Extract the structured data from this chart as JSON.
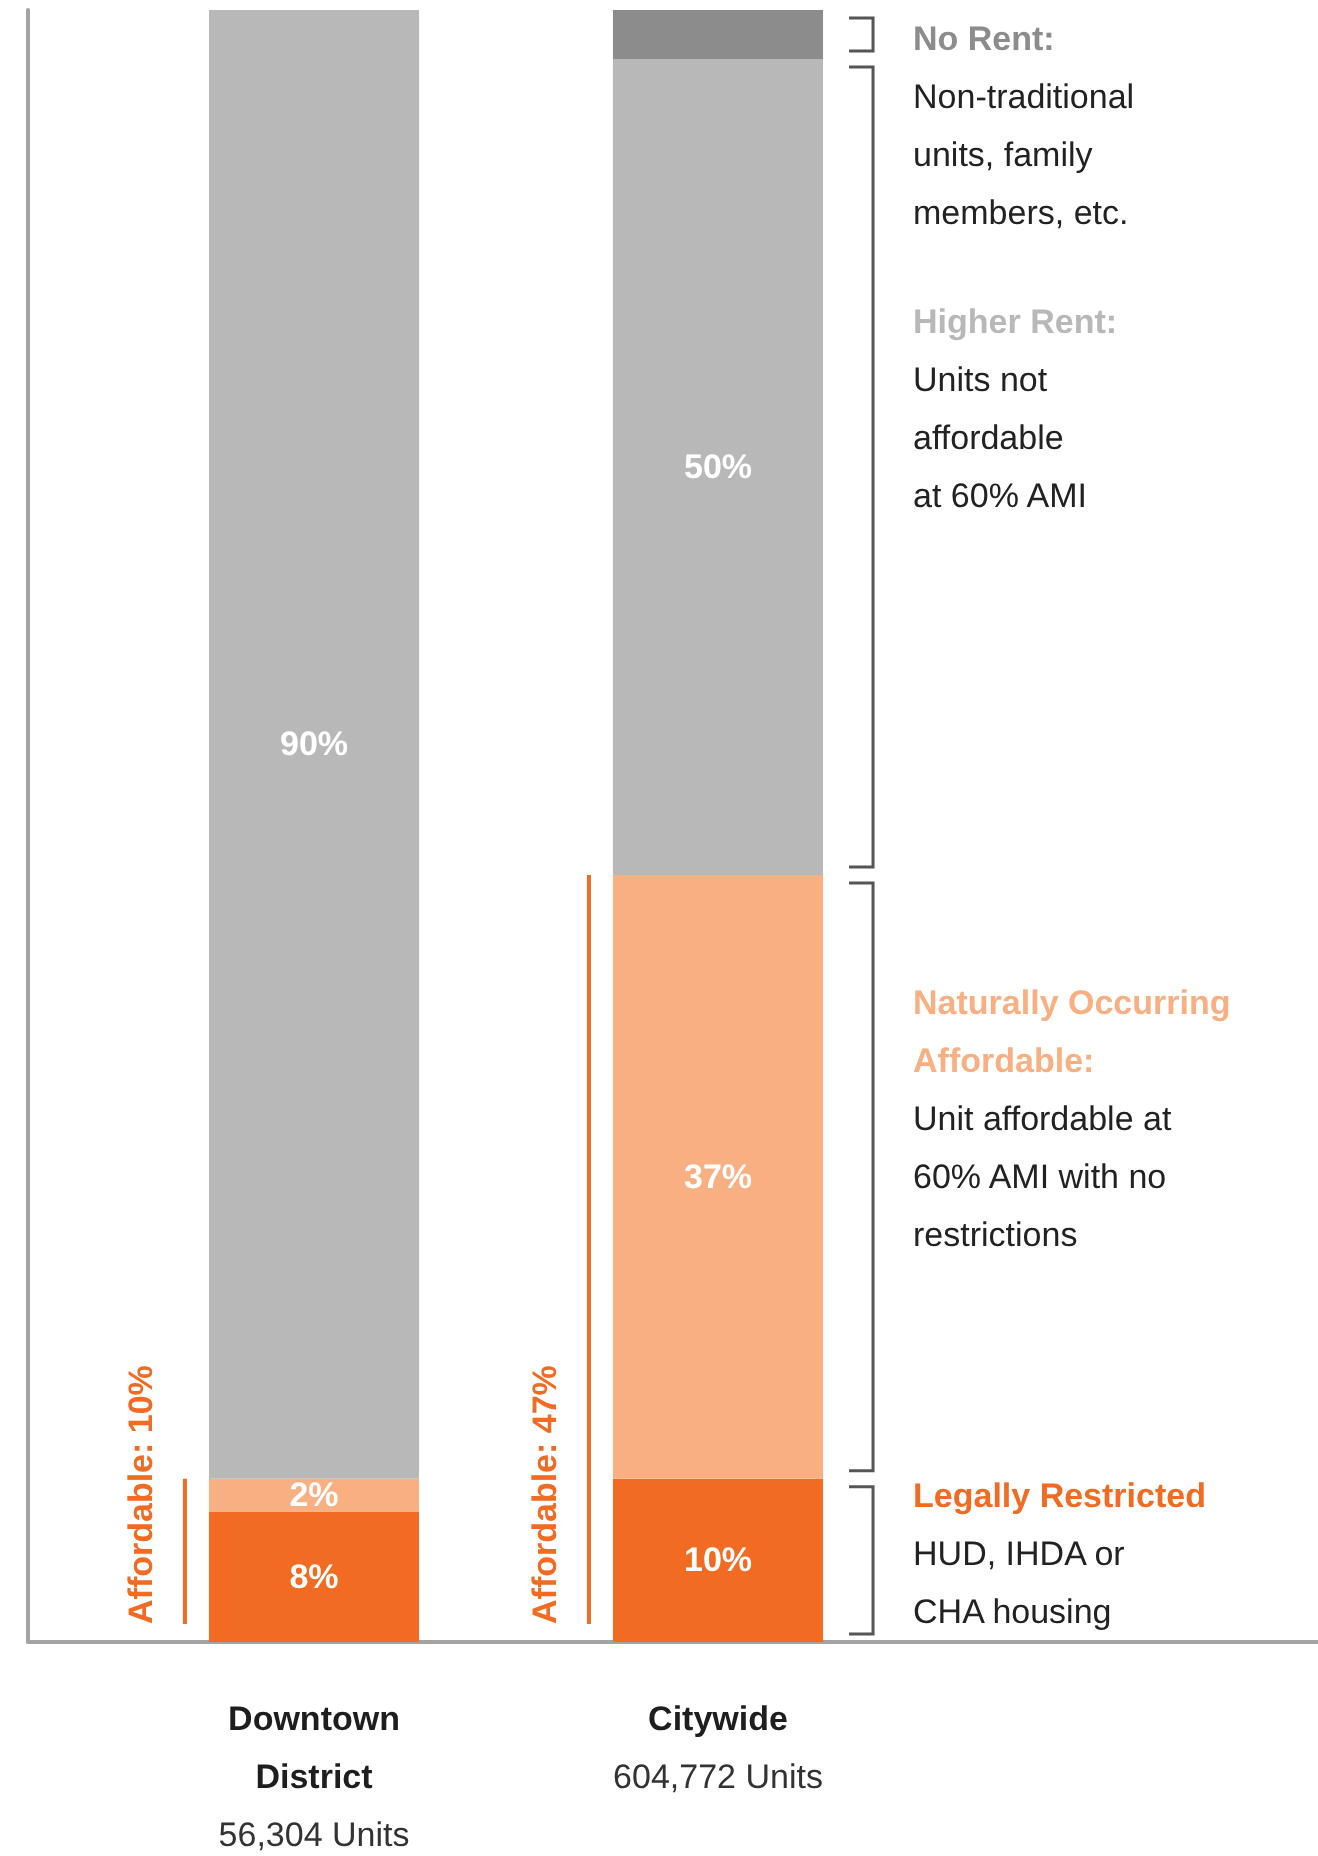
{
  "chart_data": {
    "type": "bar",
    "stacked": true,
    "categories": [
      "Downtown\nDistrict\n56,304 Units",
      "Citywide\n604,772 Units"
    ],
    "series": [
      {
        "name": "Legally Restricted",
        "color": "#f26b22",
        "values": [
          8,
          10
        ],
        "value_labels": [
          "8%",
          "10%"
        ]
      },
      {
        "name": "Naturally Occurring Affordable:",
        "color": "#f8b083",
        "values": [
          2,
          37
        ],
        "value_labels": [
          "2%",
          "37%"
        ]
      },
      {
        "name": "Higher Rent:",
        "color": "#b8b8b8",
        "values": [
          90,
          50
        ],
        "value_labels": [
          "90%",
          "50%"
        ]
      },
      {
        "name": "No Rent:",
        "color": "#8c8c8c",
        "values": [
          null,
          3
        ],
        "value_labels": [
          null,
          null
        ]
      }
    ],
    "ylim": [
      0,
      100
    ],
    "tick_labels": "x",
    "legend": "right",
    "annotations": [
      "Affordable: 10%",
      "Affordable: 47%",
      "HUD, IHDA or\nCHA housing",
      "Unit affordable at\n60% AMI with no\nrestrictions",
      "Units not\naffordable\nat 60% AMI",
      "Non-traditional\nunits, family\nmembers, etc."
    ]
  }
}
